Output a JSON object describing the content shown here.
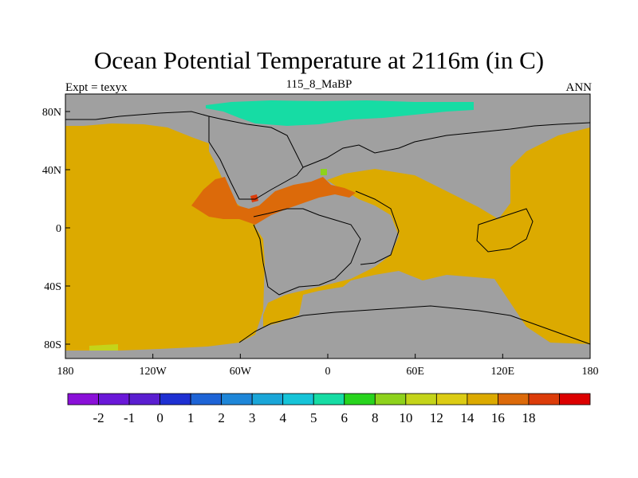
{
  "title": "Ocean Potential Temperature at 2116m (in C)",
  "left_label": "Expt = texyx",
  "center_label": "115_8_MaBP",
  "right_label": "ANN",
  "x_ticks": [
    "180",
    "120W",
    "60W",
    "0",
    "60E",
    "120E",
    "180"
  ],
  "y_ticks": [
    "80N",
    "40N",
    "0",
    "40S",
    "80S"
  ],
  "colorbar": {
    "colors": [
      "#8a10d8",
      "#6a18d8",
      "#5a1ed0",
      "#1e30d2",
      "#1e64d6",
      "#1e86d8",
      "#1aa6d8",
      "#16c4d8",
      "#16dca4",
      "#28d41e",
      "#8ed21c",
      "#c4d41a",
      "#dccc14",
      "#dcaa00",
      "#dc6a0a",
      "#dc3c0a",
      "#dc0000"
    ],
    "labels": [
      "-2",
      "-1",
      "0",
      "1",
      "2",
      "3",
      "4",
      "5",
      "6",
      "8",
      "10",
      "12",
      "14",
      "16",
      "18"
    ]
  },
  "map_colors": {
    "land": "#a0a0a0",
    "ocean_14": "#dcaa00",
    "ocean_16": "#dc6a0a",
    "ocean_6": "#16dca4",
    "ocean_12": "#c4d41a",
    "ocean_10": "#8ed21c",
    "ocean_18": "#dc3c0a"
  }
}
